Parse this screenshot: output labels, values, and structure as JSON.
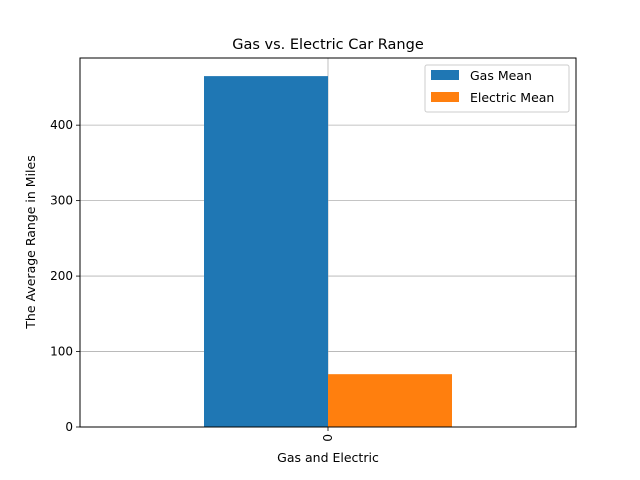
{
  "chart_data": {
    "type": "bar",
    "title": "Gas vs. Electric Car Range",
    "xlabel": "Gas and Electric",
    "ylabel": "The Average Range in Miles",
    "categories": [
      "0"
    ],
    "series": [
      {
        "name": "Gas Mean",
        "values": [
          465
        ],
        "color": "#1f77b4"
      },
      {
        "name": "Electric Mean",
        "values": [
          70
        ],
        "color": "#ff7f0e"
      }
    ],
    "ylim": [
      0,
      489
    ],
    "yticks": [
      0,
      100,
      200,
      300,
      400
    ],
    "grid": true,
    "legend_position": "top-right"
  }
}
